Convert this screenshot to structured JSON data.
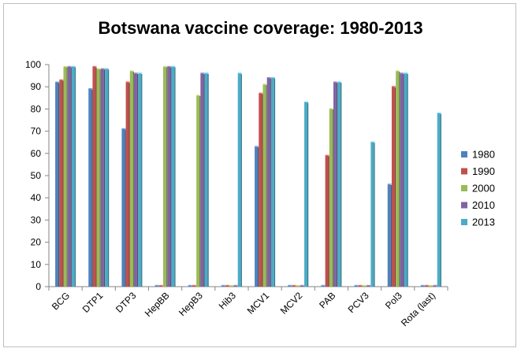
{
  "chart_data": {
    "type": "bar",
    "title": "Botswana vaccine coverage: 1980-2013",
    "xlabel": "",
    "ylabel": "",
    "ylim": [
      0,
      100
    ],
    "yticks": [
      0,
      10,
      20,
      30,
      40,
      50,
      60,
      70,
      80,
      90,
      100
    ],
    "categories": [
      "BCG",
      "DTP1",
      "DTP3",
      "HepBB",
      "HepB3",
      "Hib3",
      "MCV1",
      "MCV2",
      "PAB",
      "PCV3",
      "Pol3",
      "Rota (last)"
    ],
    "series": [
      {
        "name": "1980",
        "color": "#4f81bd",
        "values": [
          92,
          89,
          71,
          0,
          0,
          0,
          63,
          0,
          0,
          0,
          46,
          0
        ]
      },
      {
        "name": "1990",
        "color": "#c0504d",
        "values": [
          93,
          99,
          92,
          0,
          0,
          0,
          87,
          0,
          59,
          0,
          90,
          0
        ]
      },
      {
        "name": "2000",
        "color": "#9bbb59",
        "values": [
          99,
          98,
          97,
          99,
          86,
          0,
          91,
          0,
          80,
          0,
          97,
          0
        ]
      },
      {
        "name": "2010",
        "color": "#8064a2",
        "values": [
          99,
          98,
          96,
          99,
          96,
          0,
          94,
          0,
          92,
          0,
          96,
          0
        ]
      },
      {
        "name": "2013",
        "color": "#4bacc6",
        "values": [
          99,
          98,
          96,
          99,
          96,
          96,
          94,
          83,
          92,
          65,
          96,
          78
        ]
      }
    ],
    "grid": false,
    "legend_position": "right"
  }
}
